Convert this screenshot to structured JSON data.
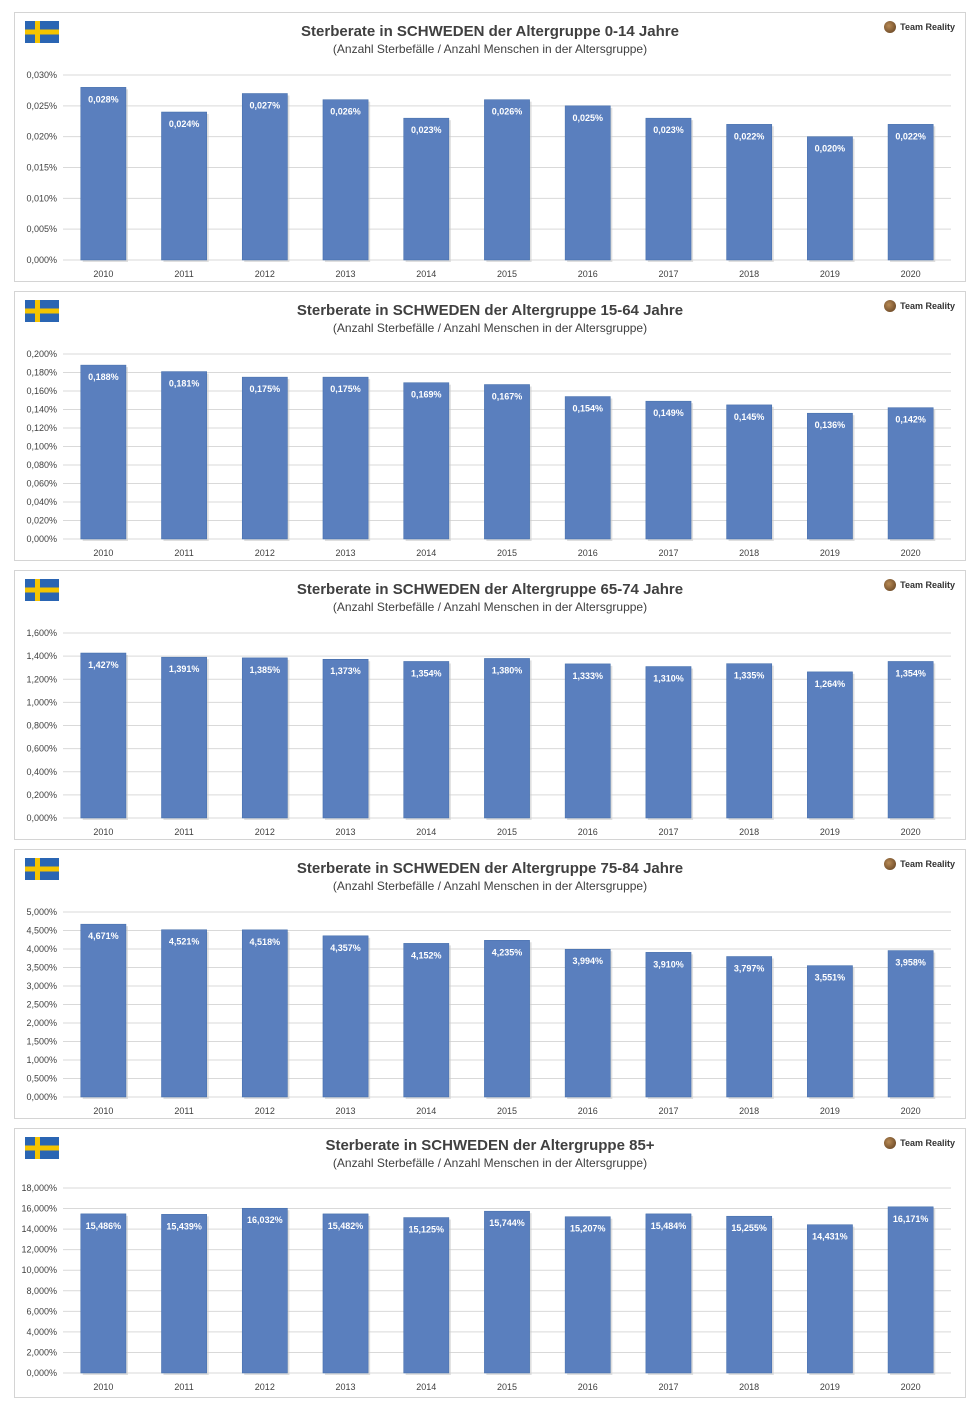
{
  "brand": "Team Reality",
  "colors": {
    "bar": "#5a7fbe",
    "bar_edge": "#3f6aa8",
    "grid": "#d9d9d9",
    "text": "#404040",
    "label": "#ffffff"
  },
  "chart_data": [
    {
      "type": "bar",
      "title": "Sterberate in SCHWEDEN der Altergruppe 0-14 Jahre",
      "subtitle": "(Anzahl Sterbefälle / Anzahl Menschen in der Altersgruppe)",
      "categories": [
        "2010",
        "2011",
        "2012",
        "2013",
        "2014",
        "2015",
        "2016",
        "2017",
        "2018",
        "2019",
        "2020"
      ],
      "values": [
        0.028,
        0.024,
        0.027,
        0.026,
        0.023,
        0.026,
        0.025,
        0.023,
        0.022,
        0.02,
        0.022
      ],
      "data_labels": [
        "0,028%",
        "0,024%",
        "0,027%",
        "0,026%",
        "0,023%",
        "0,026%",
        "0,025%",
        "0,023%",
        "0,022%",
        "0,020%",
        "0,022%"
      ],
      "yticks": [
        "0,000%",
        "0,005%",
        "0,010%",
        "0,015%",
        "0,020%",
        "0,025%",
        "0,030%"
      ],
      "ylim": [
        0,
        0.03
      ],
      "grid": true
    },
    {
      "type": "bar",
      "title": "Sterberate in SCHWEDEN der Altergruppe 15-64 Jahre",
      "subtitle": "(Anzahl Sterbefälle / Anzahl Menschen in der Altersgruppe)",
      "categories": [
        "2010",
        "2011",
        "2012",
        "2013",
        "2014",
        "2015",
        "2016",
        "2017",
        "2018",
        "2019",
        "2020"
      ],
      "values": [
        0.188,
        0.181,
        0.175,
        0.175,
        0.169,
        0.167,
        0.154,
        0.149,
        0.145,
        0.136,
        0.142
      ],
      "data_labels": [
        "0,188%",
        "0,181%",
        "0,175%",
        "0,175%",
        "0,169%",
        "0,167%",
        "0,154%",
        "0,149%",
        "0,145%",
        "0,136%",
        "0,142%"
      ],
      "yticks": [
        "0,000%",
        "0,020%",
        "0,040%",
        "0,060%",
        "0,080%",
        "0,100%",
        "0,120%",
        "0,140%",
        "0,160%",
        "0,180%",
        "0,200%"
      ],
      "ylim": [
        0,
        0.2
      ],
      "grid": true
    },
    {
      "type": "bar",
      "title": "Sterberate in SCHWEDEN der Altergruppe 65-74 Jahre",
      "subtitle": "(Anzahl Sterbefälle / Anzahl Menschen in der Altersgruppe)",
      "categories": [
        "2010",
        "2011",
        "2012",
        "2013",
        "2014",
        "2015",
        "2016",
        "2017",
        "2018",
        "2019",
        "2020"
      ],
      "values": [
        1.427,
        1.391,
        1.385,
        1.373,
        1.354,
        1.38,
        1.333,
        1.31,
        1.335,
        1.264,
        1.354
      ],
      "data_labels": [
        "1,427%",
        "1,391%",
        "1,385%",
        "1,373%",
        "1,354%",
        "1,380%",
        "1,333%",
        "1,310%",
        "1,335%",
        "1,264%",
        "1,354%"
      ],
      "yticks": [
        "0,000%",
        "0,200%",
        "0,400%",
        "0,600%",
        "0,800%",
        "1,000%",
        "1,200%",
        "1,400%",
        "1,600%"
      ],
      "ylim": [
        0,
        1.6
      ],
      "grid": true
    },
    {
      "type": "bar",
      "title": "Sterberate in SCHWEDEN der Altergruppe 75-84 Jahre",
      "subtitle": "(Anzahl Sterbefälle / Anzahl Menschen in der Altersgruppe)",
      "categories": [
        "2010",
        "2011",
        "2012",
        "2013",
        "2014",
        "2015",
        "2016",
        "2017",
        "2018",
        "2019",
        "2020"
      ],
      "values": [
        4.671,
        4.521,
        4.518,
        4.357,
        4.152,
        4.235,
        3.994,
        3.91,
        3.797,
        3.551,
        3.958
      ],
      "data_labels": [
        "4,671%",
        "4,521%",
        "4,518%",
        "4,357%",
        "4,152%",
        "4,235%",
        "3,994%",
        "3,910%",
        "3,797%",
        "3,551%",
        "3,958%"
      ],
      "yticks": [
        "0,000%",
        "0,500%",
        "1,000%",
        "1,500%",
        "2,000%",
        "2,500%",
        "3,000%",
        "3,500%",
        "4,000%",
        "4,500%",
        "5,000%"
      ],
      "ylim": [
        0,
        5.0
      ],
      "grid": true
    },
    {
      "type": "bar",
      "title": "Sterberate in SCHWEDEN der Altergruppe 85+",
      "subtitle": "(Anzahl Sterbefälle / Anzahl Menschen in der Altersgruppe)",
      "categories": [
        "2010",
        "2011",
        "2012",
        "2013",
        "2014",
        "2015",
        "2016",
        "2017",
        "2018",
        "2019",
        "2020"
      ],
      "values": [
        15.486,
        15.439,
        16.032,
        15.482,
        15.125,
        15.744,
        15.207,
        15.484,
        15.255,
        14.431,
        16.171
      ],
      "data_labels": [
        "15,486%",
        "15,439%",
        "16,032%",
        "15,482%",
        "15,125%",
        "15,744%",
        "15,207%",
        "15,484%",
        "15,255%",
        "14,431%",
        "16,171%"
      ],
      "yticks": [
        "0,000%",
        "2,000%",
        "4,000%",
        "6,000%",
        "8,000%",
        "10,000%",
        "12,000%",
        "14,000%",
        "16,000%",
        "18,000%"
      ],
      "ylim": [
        0,
        18.0
      ],
      "grid": true
    }
  ]
}
